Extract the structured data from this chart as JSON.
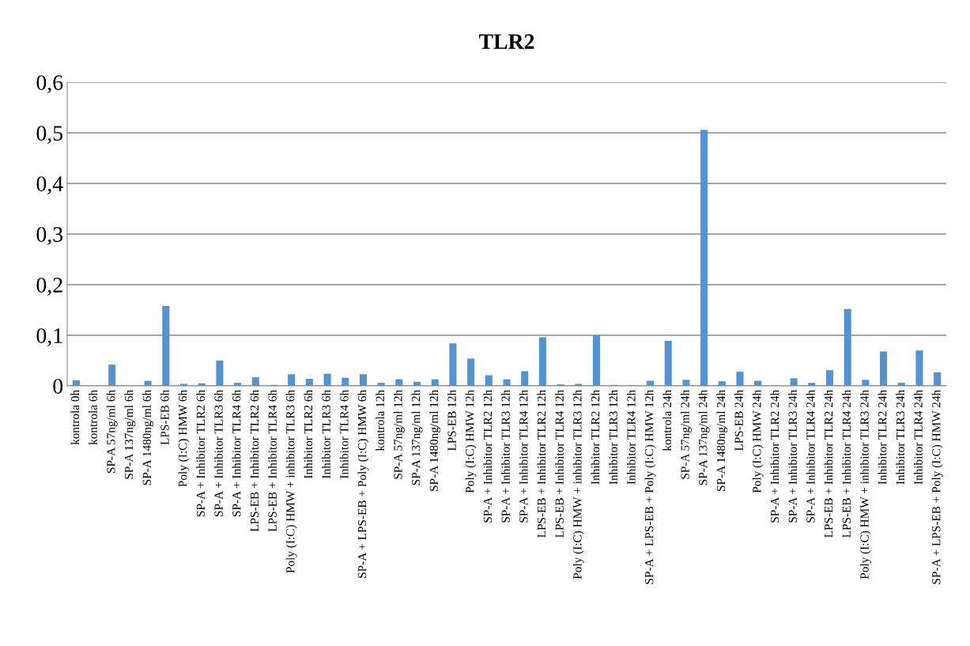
{
  "chart_data": {
    "type": "bar",
    "title": "TLR2",
    "categories": [
      "kontrola 0h",
      "kontrola 6h",
      "SP-A 57ng/ml 6h",
      "SP-A 137ng/ml 6h",
      "SP-A 1480ng/ml 6h",
      "LPS-EB 6h",
      "Poly (I:C) HMW 6h",
      "SP-A + Inhibitor TLR2 6h",
      "SP-A + Inhibitor TLR3 6h",
      "SP-A + Inhibitor TLR4 6h",
      "LPS-EB + Inhibitor TLR2 6h",
      "LPS-EB + Inhibitor TLR4 6h",
      "Poly (I:C) HMW + inhibitor TLR3 6h",
      "Inhibitor TLR2 6h",
      "Inhibitor TLR3 6h",
      "Inhibitor TLR4 6h",
      "SP-A + LPS-EB + Poly (I:C) HMW 6h",
      "kontrola 12h",
      "SP-A 57ng/ml 12h",
      "SP-A 137ng/ml 12h",
      "SP-A 1480ng/ml 12h",
      "LPS-EB 12h",
      "Poly (I:C) HMW 12h",
      "SP-A + Inhibitor TLR2 12h",
      "SP-A + Inhibitor TLR3 12h",
      "SP-A + Inhibitor TLR4 12h",
      "LPS-EB + Inhibitor TLR2 12h",
      "LPS-EB + Inhibitor TLR4 12h",
      "Poly (I:C) HMW + inhibitor TLR3 12h",
      "Inhibitor TLR2 12h",
      "Inhibitor TLR3 12h",
      "Inhibitor TLR4 12h",
      "SP-A + LPS-EB + Poly (I:C) HMW 12h",
      "kontrola 24h",
      "SP-A 57ng/ml 24h",
      "SP-A 137ng/ml 24h",
      "SP-A 1480ng/ml 24h",
      "LPS-EB 24h",
      "Poly (I:C) HMW 24h",
      "SP-A + Inhibitor TLR2 24h",
      "SP-A + Inhibitor TLR3 24h",
      "SP-A + Inhibitor TLR4 24h",
      "LPS-EB + Inhibitor TLR2 24h",
      "LPS-EB + Inhibitor TLR4 24h",
      "Poly (I:C) HMW + inhibitor TLR3 24h",
      "Inhibitor TLR2 24h",
      "Inhibitor TLR3 24h",
      "Inhibitor TLR4 24h",
      "SP-A + LPS-EB + Poly (I:C) HMW 24h"
    ],
    "values": [
      0.011,
      0,
      0.042,
      0,
      0.01,
      0.158,
      0.004,
      0.005,
      0.05,
      0.006,
      0.017,
      0.002,
      0.023,
      0.014,
      0.024,
      0.016,
      0.023,
      0.006,
      0.013,
      0.008,
      0.013,
      0.084,
      0.054,
      0.021,
      0.013,
      0.029,
      0.096,
      0.003,
      0.004,
      0.1,
      0.002,
      0.001,
      0.01,
      0.089,
      0.012,
      0.506,
      0.009,
      0.028,
      0.01,
      0.001,
      0.015,
      0.006,
      0.031,
      0.152,
      0.012,
      0.068,
      0.006,
      0.07,
      0.027
    ],
    "color": "#5592d0",
    "ylim": [
      0,
      0.6
    ],
    "yticks": [
      0,
      {
        "value": 0.1,
        "label": "0,1"
      },
      {
        "value": 0.2,
        "label": "0,2"
      },
      {
        "value": 0.3,
        "label": "0,3"
      },
      {
        "value": 0.4,
        "label": "0,4"
      },
      {
        "value": 0.5,
        "label": "0,5"
      },
      {
        "value": 0.6,
        "label": "0,6"
      }
    ],
    "grid": "y",
    "legend": false
  }
}
